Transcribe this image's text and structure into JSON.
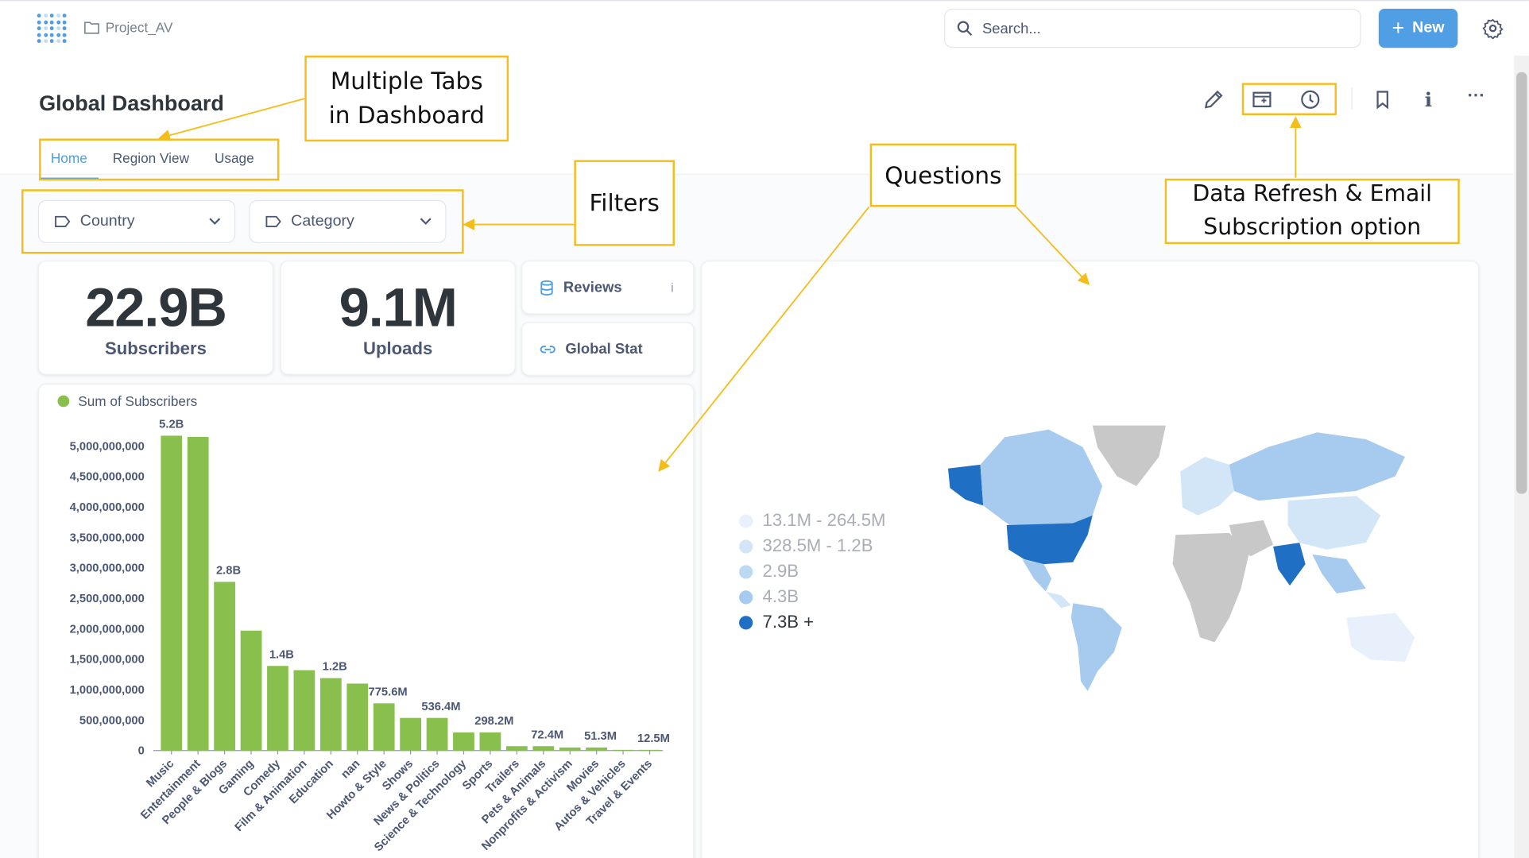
{
  "header": {
    "breadcrumb": "Project_AV",
    "search_placeholder": "Search...",
    "new_button": "New"
  },
  "dashboard": {
    "title": "Global Dashboard",
    "tabs": [
      {
        "label": "Home",
        "active": true
      },
      {
        "label": "Region View",
        "active": false
      },
      {
        "label": "Usage",
        "active": false
      }
    ],
    "filters": [
      {
        "label": "Country"
      },
      {
        "label": "Category"
      }
    ],
    "scalars": [
      {
        "value": "22.9B",
        "label": "Subscribers"
      },
      {
        "value": "9.1M",
        "label": "Uploads"
      }
    ],
    "links": [
      {
        "label": "Reviews",
        "info": "i"
      },
      {
        "label": "Global Stat"
      }
    ]
  },
  "annotations": {
    "tabs_note": "Multiple Tabs in Dashboard",
    "filters_note": "Filters",
    "questions_note": "Questions",
    "refresh_note": "Data Refresh & Email Subscription option"
  },
  "map_legend": [
    {
      "label": "13.1M - 264.5M",
      "color": "#e8f1fb"
    },
    {
      "label": "328.5M - 1.2B",
      "color": "#d3e6f7"
    },
    {
      "label": "2.9B",
      "color": "#bcd9f3"
    },
    {
      "label": "4.3B",
      "color": "#a6cbef"
    },
    {
      "label": "7.3B +",
      "color": "#1f6fc4"
    }
  ],
  "colors": {
    "brand": "#509ee3",
    "bar": "#88bf4d",
    "annotation": "#f5bd1b"
  },
  "chart_data": {
    "type": "bar",
    "legend": "Sum of Subscribers",
    "categories": [
      "Music",
      "Entertainment",
      "People & Blogs",
      "Gaming",
      "Comedy",
      "Film & Animation",
      "Education",
      "nan",
      "Howto & Style",
      "Shows",
      "News & Politics",
      "Science & Technology",
      "Sports",
      "Trailers",
      "Pets & Animals",
      "Nonprofits & Activism",
      "Movies",
      "Autos & Vehicles",
      "Travel & Events"
    ],
    "values": [
      5170000000,
      5150000000,
      2770000000,
      1970000000,
      1390000000,
      1320000000,
      1190000000,
      1100000000,
      775600000,
      536400000,
      536400000,
      298200000,
      298200000,
      72400000,
      72400000,
      51300000,
      51300000,
      12500000,
      12500000
    ],
    "data_labels": [
      "5.2B",
      "",
      "2.8B",
      "",
      "1.4B",
      "",
      "1.2B",
      "",
      "775.6M",
      "",
      "536.4M",
      "",
      "298.2M",
      "",
      "72.4M",
      "",
      "51.3M",
      "",
      "12.5M"
    ],
    "yticks": [
      "0",
      "500,000,000",
      "1,000,000,000",
      "1,500,000,000",
      "2,000,000,000",
      "2,500,000,000",
      "3,000,000,000",
      "3,500,000,000",
      "4,000,000,000",
      "4,500,000,000",
      "5,000,000,000"
    ],
    "ylim": [
      0,
      5200000000
    ]
  }
}
